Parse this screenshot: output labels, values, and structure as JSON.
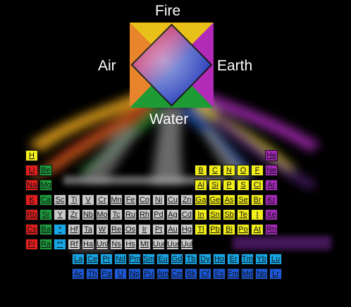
{
  "elements": {
    "fire": "Fire",
    "air": "Air",
    "earth": "Earth",
    "water": "Water"
  },
  "colors": {
    "fire": "#e8c81a",
    "air": "#1f6ad8",
    "earth": "#b22ab8",
    "water": "#1c9e36",
    "alkali": "#e31d1d",
    "alkaline_earth": "#1d9b3d",
    "transition": "#c9c9c9",
    "metalloid_nonmetal": "#f2ee1a",
    "noble_gas": "#a428b8",
    "lanthanide": "#16a6e6",
    "actinide": "#1b58d8"
  },
  "table": {
    "rows": [
      [
        "H",
        "",
        "",
        "",
        "",
        "",
        "",
        "",
        "",
        "",
        "",
        "",
        "",
        "",
        "",
        "",
        "",
        "He"
      ],
      [
        "Li",
        "Be",
        "",
        "",
        "",
        "",
        "",
        "",
        "",
        "",
        "",
        "",
        "B",
        "C",
        "N",
        "O",
        "F",
        "Ne"
      ],
      [
        "Na",
        "Mg",
        "",
        "",
        "",
        "",
        "",
        "",
        "",
        "",
        "",
        "",
        "Al",
        "Si",
        "P",
        "S",
        "Cl",
        "Ar"
      ],
      [
        "K",
        "Ca",
        "Sc",
        "Ti",
        "V",
        "Cr",
        "Mn",
        "Fe",
        "Co",
        "Ni",
        "Cu",
        "Zn",
        "Ga",
        "Ge",
        "As",
        "Se",
        "Br",
        "Kr"
      ],
      [
        "Rb",
        "Sr",
        "Y",
        "Zr",
        "Nb",
        "Mo",
        "Tc",
        "Ru",
        "Rh",
        "Pd",
        "Ag",
        "Cd",
        "In",
        "Sn",
        "Sb",
        "Te",
        "I",
        "Xe"
      ],
      [
        "Cs",
        "Ba",
        "*",
        "Hf",
        "Ta",
        "W",
        "Re",
        "Os",
        "Ir",
        "Pt",
        "Au",
        "Hg",
        "Tl",
        "Pb",
        "Bi",
        "Po",
        "At",
        "Rn"
      ],
      [
        "Fr",
        "Ra",
        "**",
        "Rf",
        "Ha",
        "Unh",
        "Ns",
        "Hs",
        "Mt",
        "Uun",
        "Uuu",
        "Uub",
        "",
        "",
        "",
        "",
        "",
        ""
      ]
    ],
    "lanthanides": [
      "La",
      "Ce",
      "Pr",
      "Nd",
      "Pm",
      "Sm",
      "Eu",
      "Gd",
      "Tb",
      "Dy",
      "Ho",
      "Er",
      "Tm",
      "Yb",
      "Lu"
    ],
    "actinides": [
      "Ac",
      "Th",
      "Pa",
      "U",
      "Np",
      "Pu",
      "Am",
      "Cm",
      "Bk",
      "Cf",
      "Es",
      "Fm",
      "Md",
      "No",
      "Lr"
    ]
  }
}
